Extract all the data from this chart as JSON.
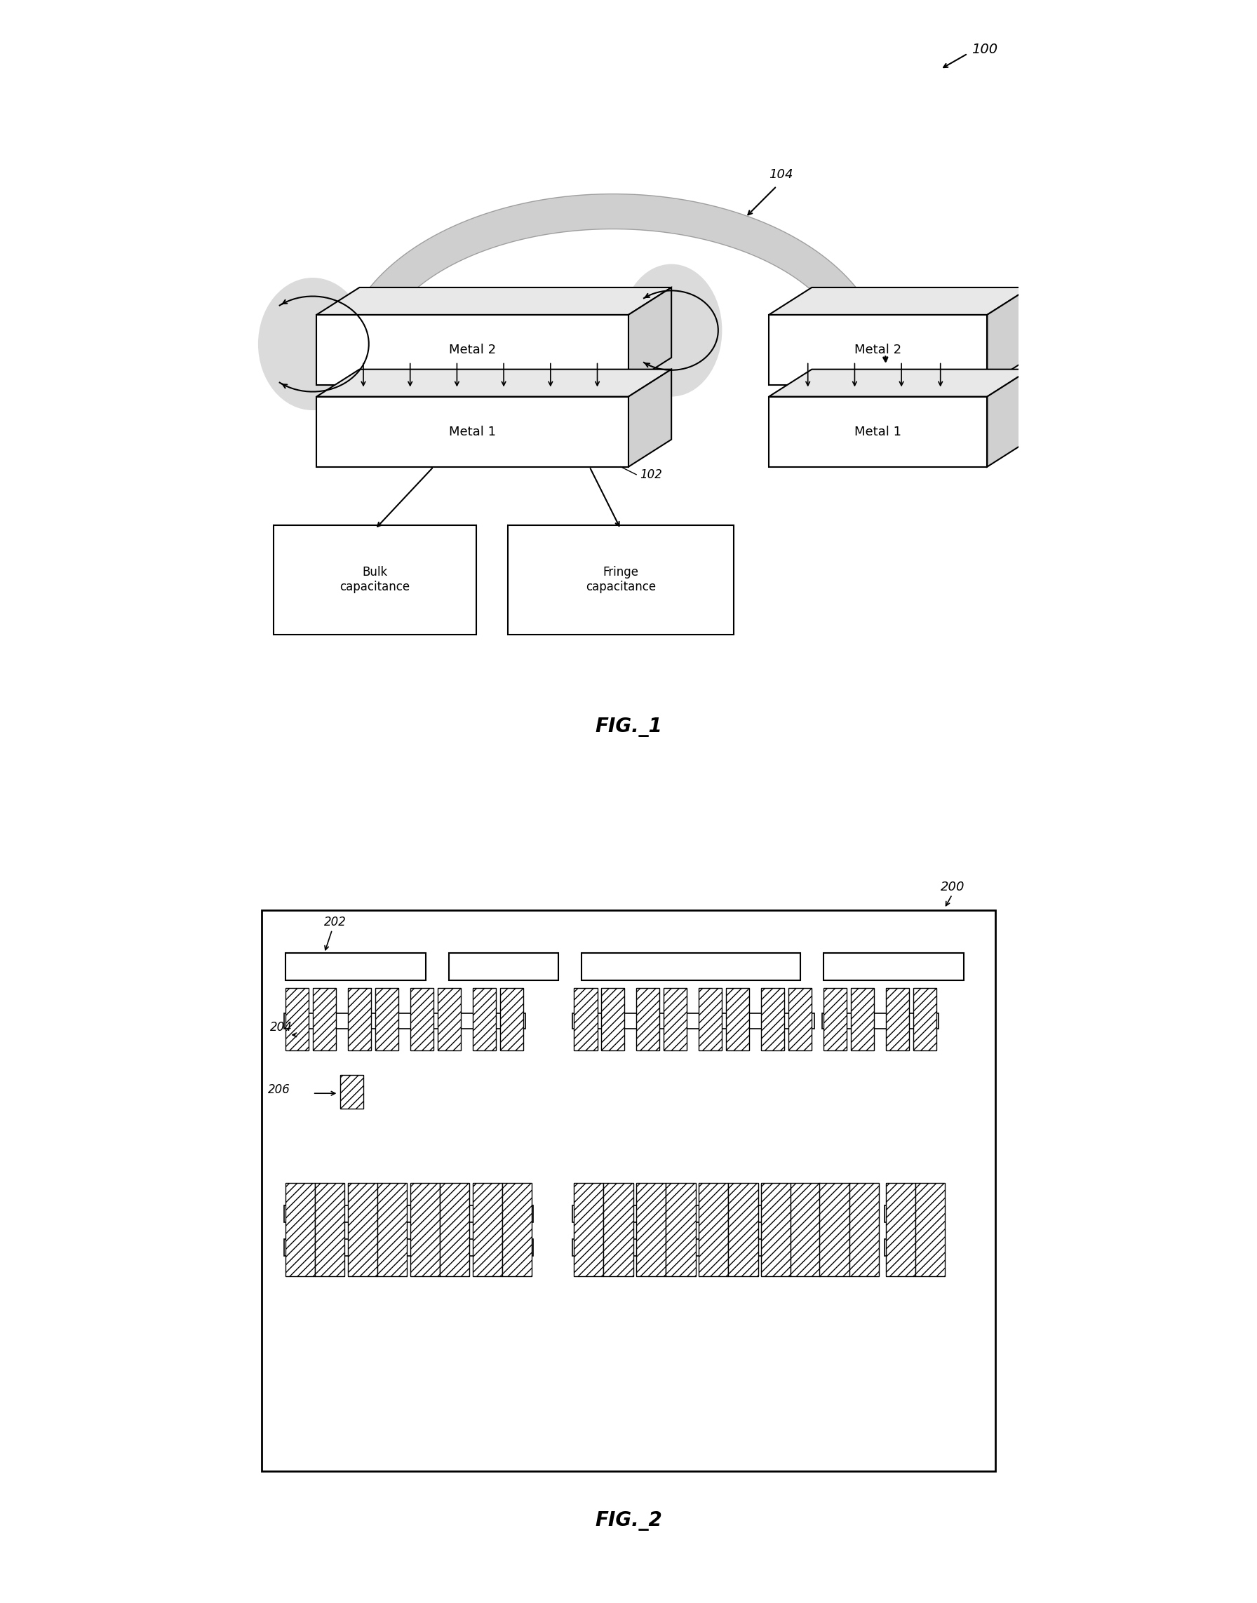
{
  "fig1": {
    "label": "FIG._1",
    "ref_100": "100",
    "ref_102": "102",
    "ref_104": "104",
    "box1_label_top": "Metal 2",
    "box1_label_bot": "Metal 1",
    "box2_label_top": "Metal 2",
    "box2_label_bot": "Metal 1",
    "bulk_cap_label": "Bulk\ncapacitance",
    "fringe_cap_label": "Fringe\ncapacitance"
  },
  "fig2": {
    "label": "FIG._2",
    "ref_200": "200",
    "ref_202": "202",
    "ref_204": "204",
    "ref_206": "206"
  },
  "bg_color": "#ffffff",
  "line_color": "#000000",
  "hatch_color": "#555555",
  "fringe_color": "#bbbbbb"
}
